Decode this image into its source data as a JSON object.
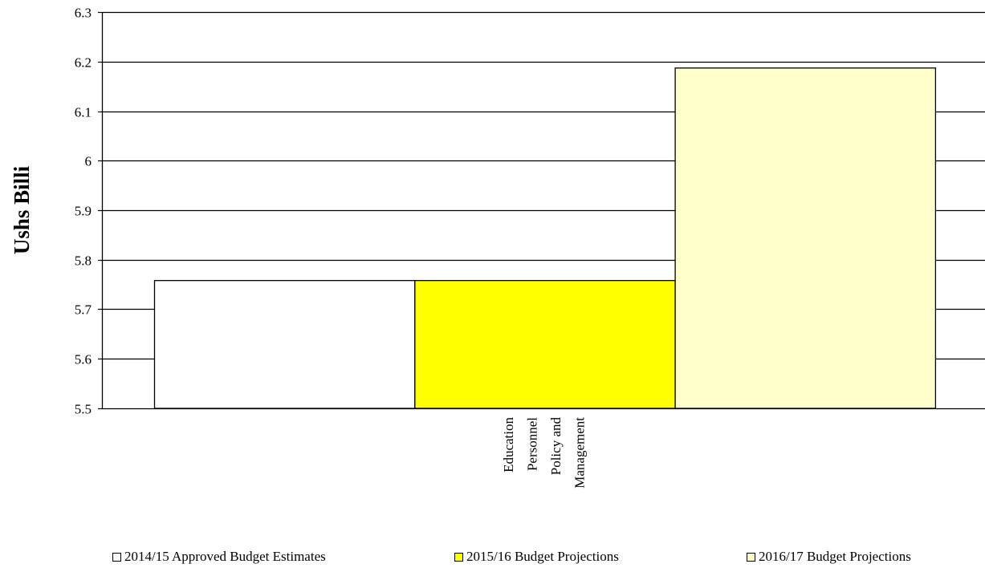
{
  "chart_data": {
    "type": "bar",
    "categories": [
      "Education Personnel Policy and Management"
    ],
    "category_label_lines": [
      "Education",
      "Personnel",
      "Policy and",
      "Management"
    ],
    "series": [
      {
        "name": "2014/15 Approved Budget Estimates",
        "values": [
          5.758
        ],
        "color": "#ffffff"
      },
      {
        "name": "2015/16 Budget Projections",
        "values": [
          5.758
        ],
        "color": "#ffff00"
      },
      {
        "name": "2016/17 Budget Projections",
        "values": [
          6.187
        ],
        "color": "#ffffcc"
      }
    ],
    "ylabel": "Ushs Billi",
    "xlabel": "",
    "ylim": [
      5.5,
      6.3
    ],
    "yticks": [
      "5.5",
      "5.6",
      "5.7",
      "5.8",
      "5.9",
      "6",
      "6.1",
      "6.2",
      "6.3"
    ],
    "grid": true,
    "legend_position": "bottom"
  }
}
